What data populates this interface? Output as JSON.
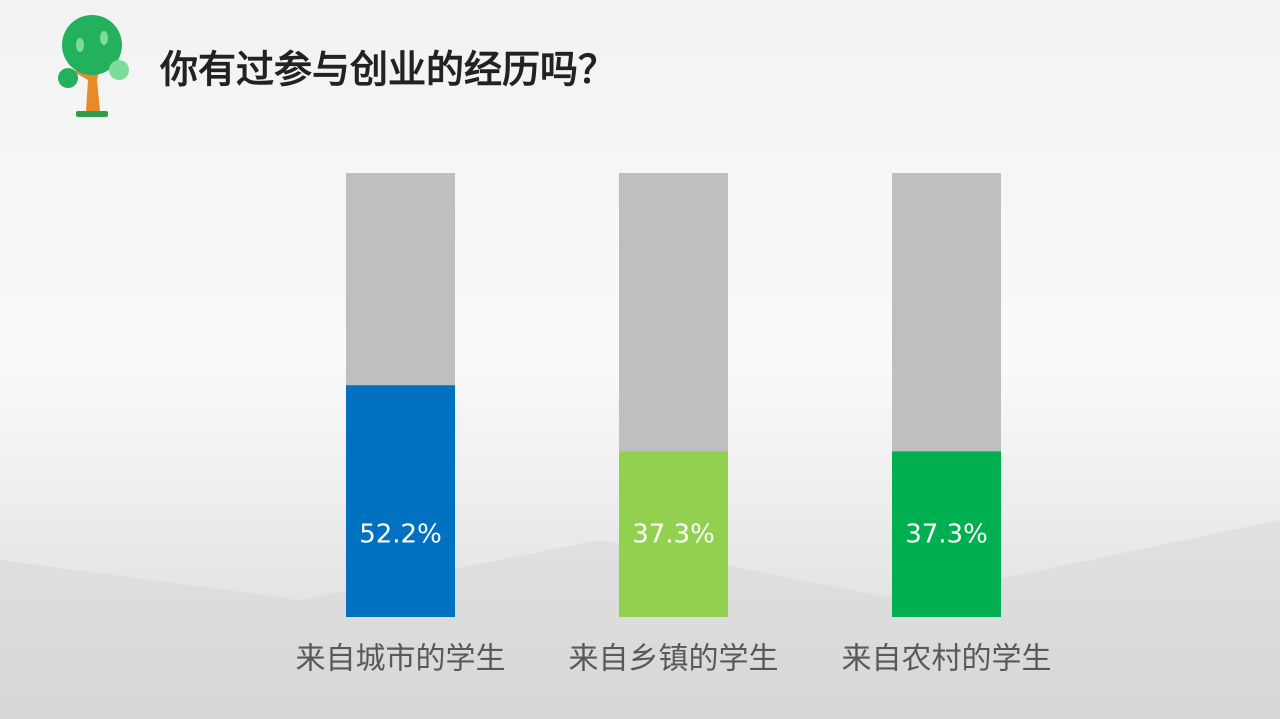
{
  "chart_data": {
    "type": "bar",
    "title": "你有过参与创业的经历吗？",
    "categories": [
      "来自城市的学生",
      "来自乡镇的学生",
      "来自农村的学生"
    ],
    "values": [
      52.2,
      37.3,
      37.3
    ],
    "value_labels": [
      "52.2%",
      "37.3%",
      "37.3%"
    ],
    "colors": [
      "#0070c0",
      "#92d050",
      "#00b050"
    ],
    "track_color": "#bfbfbf",
    "ylim": [
      0,
      100
    ]
  }
}
